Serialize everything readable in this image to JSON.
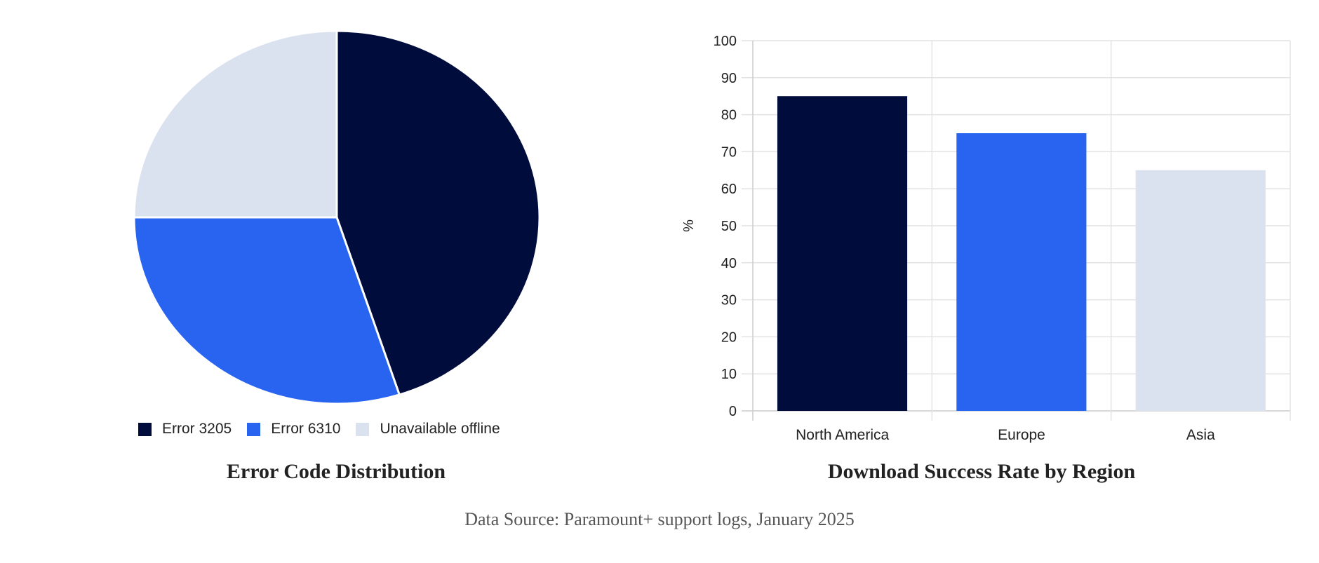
{
  "colors": {
    "navy": "#000c3b",
    "blue": "#2864f0",
    "light": "#dae1ef",
    "grid": "#e3e3e3",
    "axis": "#cccccc",
    "text": "#222222",
    "footer": "#555555"
  },
  "pie": {
    "title": "Error Code Distribution",
    "legend": [
      {
        "label": "Error 3205",
        "color": "#000c3b"
      },
      {
        "label": "Error 6310",
        "color": "#2864f0"
      },
      {
        "label": "Unavailable offline",
        "color": "#dae1ef"
      }
    ]
  },
  "bar": {
    "title": "Download Success Rate by Region",
    "ylabel": "%",
    "yticks": [
      "0",
      "10",
      "20",
      "30",
      "40",
      "50",
      "60",
      "70",
      "80",
      "90",
      "100"
    ],
    "categories": [
      "North America",
      "Europe",
      "Asia"
    ]
  },
  "footer": {
    "source": "Data Source: Paramount+ support logs, January 2025"
  },
  "chart_data": [
    {
      "type": "pie",
      "title": "Error Code Distribution",
      "categories": [
        "Error 3205",
        "Error 6310",
        "Unavailable offline"
      ],
      "values": [
        45,
        30,
        25
      ],
      "colors": [
        "#000c3b",
        "#2864f0",
        "#dae1ef"
      ],
      "legend_position": "bottom"
    },
    {
      "type": "bar",
      "title": "Download Success Rate by Region",
      "categories": [
        "North America",
        "Europe",
        "Asia"
      ],
      "values": [
        85,
        75,
        65
      ],
      "colors": [
        "#000c3b",
        "#2864f0",
        "#dae1ef"
      ],
      "xlabel": "",
      "ylabel": "%",
      "ylim": [
        0,
        100
      ],
      "yticks": [
        0,
        10,
        20,
        30,
        40,
        50,
        60,
        70,
        80,
        90,
        100
      ],
      "grid": true
    }
  ]
}
